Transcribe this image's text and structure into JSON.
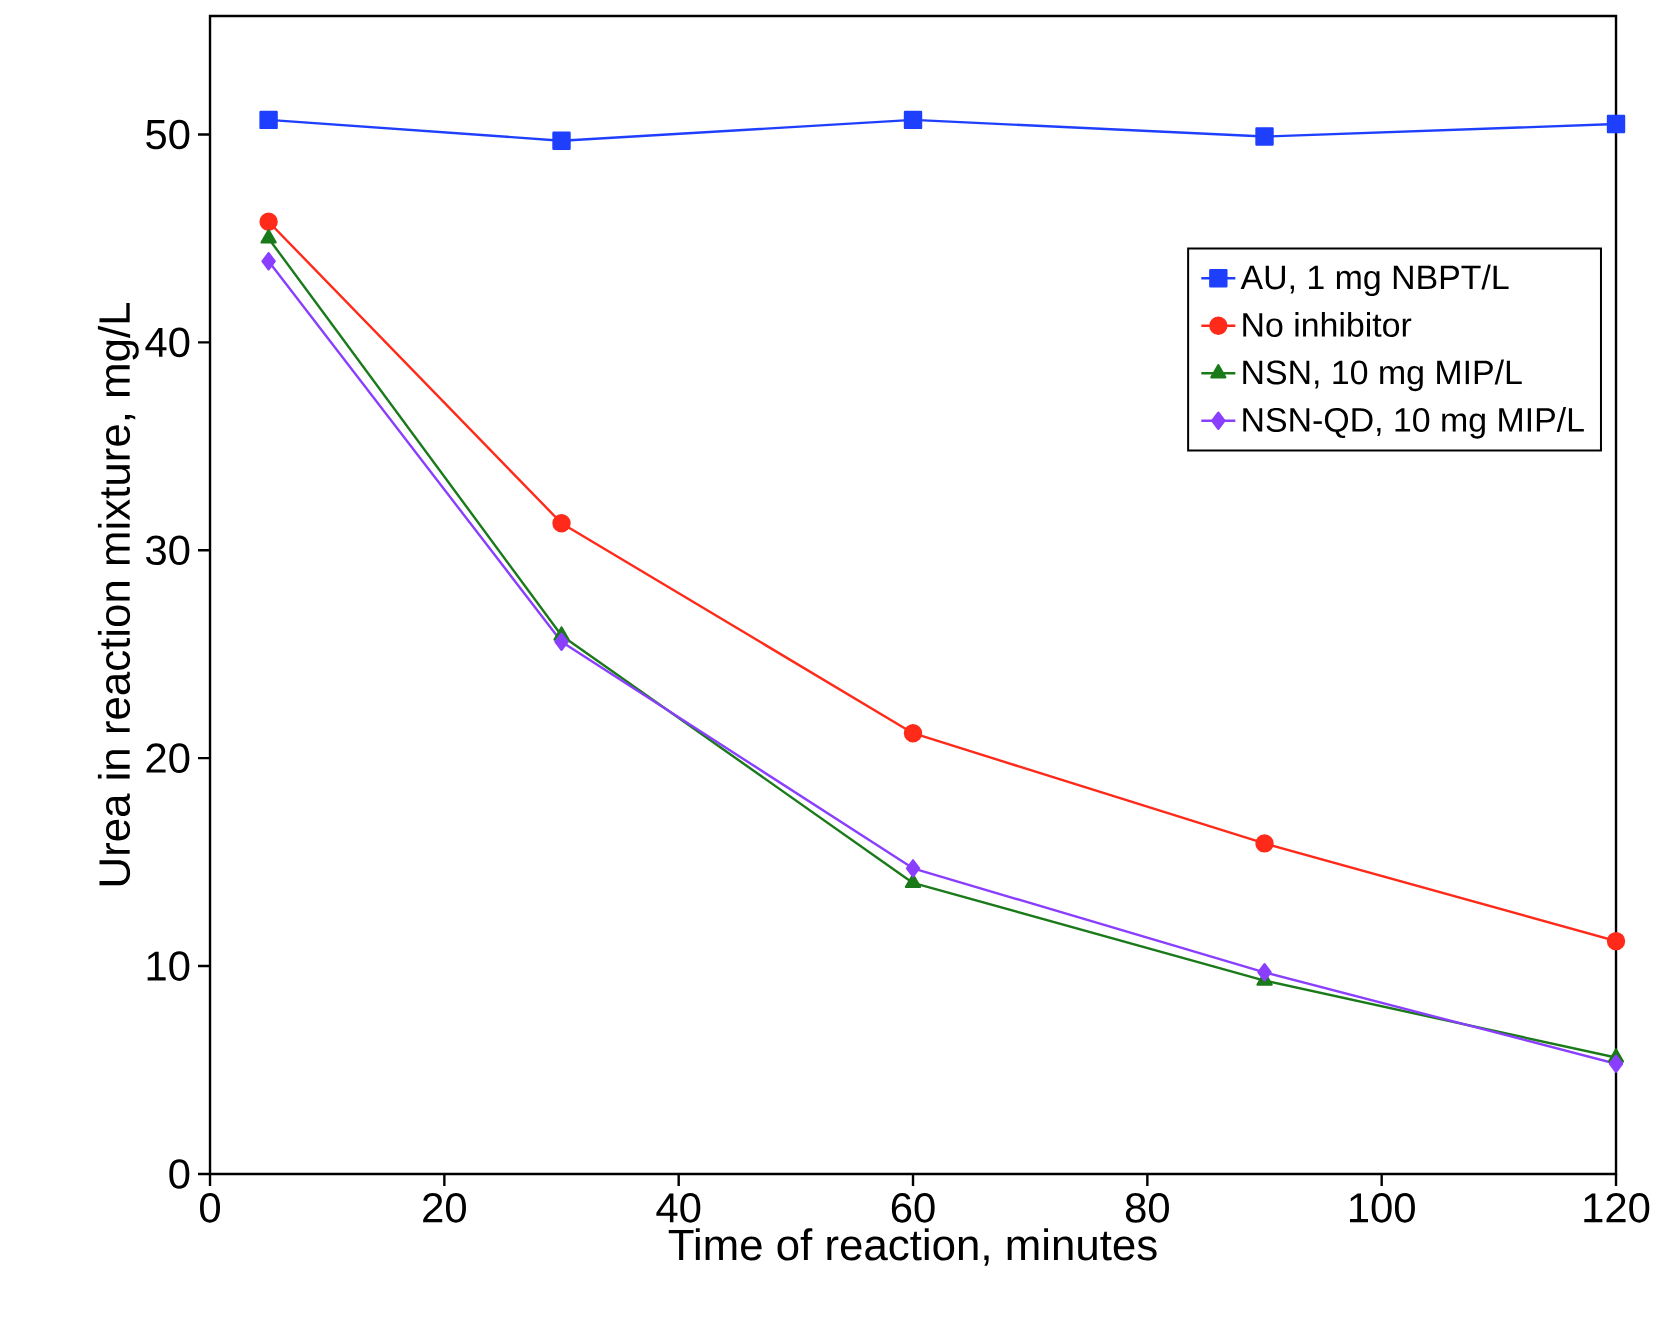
{
  "chart_data": {
    "type": "line",
    "xlabel": "Time of reaction, minutes",
    "ylabel": "Urea in reaction mixture, mg/L",
    "x": [
      5,
      30,
      60,
      90,
      120
    ],
    "series": [
      {
        "name": "AU, 1 mg NBPT/L",
        "color": "#1f3fff",
        "marker": "square",
        "values": [
          50.7,
          49.7,
          50.7,
          49.9,
          50.5
        ]
      },
      {
        "name": "No inhibitor",
        "color": "#ff2a1a",
        "marker": "circle",
        "values": [
          45.8,
          31.3,
          21.2,
          15.9,
          11.2
        ]
      },
      {
        "name": "NSN, 10 mg MIP/L",
        "color": "#1a7a1a",
        "marker": "triangle",
        "values": [
          45.0,
          25.9,
          14.0,
          9.3,
          5.6
        ]
      },
      {
        "name": "NSN-QD, 10 mg MIP/L",
        "color": "#8a3fff",
        "marker": "diamond",
        "values": [
          43.9,
          25.6,
          14.7,
          9.7,
          5.3
        ]
      }
    ],
    "xlim": [
      0,
      120
    ],
    "ylim": [
      0,
      55.7
    ],
    "xticks": [
      0,
      20,
      40,
      60,
      80,
      100,
      120
    ],
    "yticks": [
      0,
      10,
      20,
      30,
      40,
      50
    ],
    "grid": false,
    "legend": "top right",
    "line_style": "solid"
  }
}
